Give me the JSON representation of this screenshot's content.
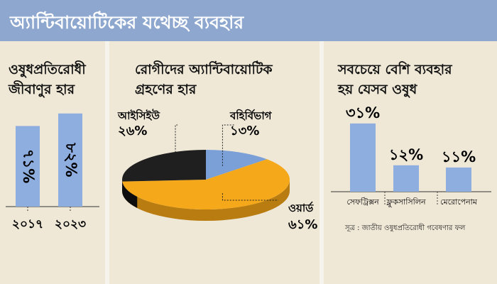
{
  "header": {
    "title": "অ্যান্টিবায়োটিকের যথেচ্ছ ব্যবহার"
  },
  "chart_data": [
    {
      "type": "bar",
      "title": [
        "ওষুধপ্রতিরোধী",
        "জীবাণুর হার"
      ],
      "categories": [
        "২০১৭",
        "২০২৩"
      ],
      "values": [
        71,
        82
      ],
      "value_labels": [
        "৭১%",
        "৮২%"
      ],
      "ylim": [
        0,
        100
      ]
    },
    {
      "type": "pie",
      "title": [
        "রোগীদের অ্যান্টিবায়োটিক",
        "গ্রহণের হার"
      ],
      "slices": [
        {
          "label": "বহির্বিভাগ",
          "value": 13,
          "value_label": "১৩%",
          "color": "#7ba0d8"
        },
        {
          "label": "ওয়ার্ড",
          "value": 61,
          "value_label": "৬১%",
          "color": "#f5a81a"
        },
        {
          "label": "আইসিইউ",
          "value": 26,
          "value_label": "২৬%",
          "color": "#1f1f1f"
        }
      ]
    },
    {
      "type": "bar",
      "title": [
        "সবচেয়ে বেশি ব্যবহার",
        "হয় যেসব ওষুধ"
      ],
      "categories": [
        "সেফট্রিক্সন",
        "ফ্লুকসাসিলিন",
        "মেরোপেনাম"
      ],
      "values": [
        31,
        12,
        11
      ],
      "value_labels": [
        "৩১%",
        "১২%",
        "১১%"
      ],
      "ylim": [
        0,
        35
      ]
    }
  ],
  "source": "সূত্র : জাতীয় ওষুধপ্রতিরোধী গবেষণার ফল",
  "colors": {
    "header": "#8da7cf",
    "bar": "#8faee0",
    "panel": "#efe8d7",
    "accent": "#f5a81a"
  }
}
